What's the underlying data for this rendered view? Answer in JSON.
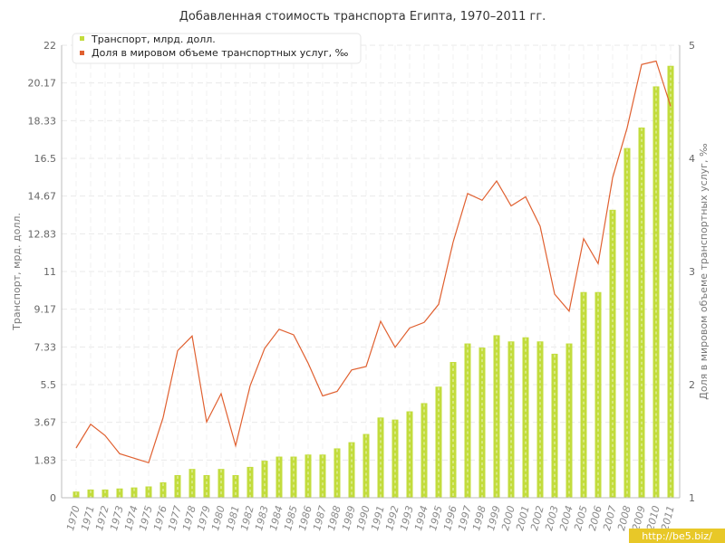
{
  "chart_data": {
    "type": "bar+line",
    "title": "Добавленная стоимость транспорта Египта, 1970–2011 гг.",
    "y_left_label": "Транспорт, мрд. долл.",
    "y_right_label": "Доля в мировом объеме транспортных услуг, ‰",
    "y_left_ticks": [
      "0",
      "1.83",
      "3.67",
      "5.5",
      "7.33",
      "9.17",
      "11",
      "12.83",
      "14.67",
      "16.5",
      "18.33",
      "20.17",
      "22"
    ],
    "y_right_ticks": [
      "1",
      "2",
      "3",
      "4",
      "5"
    ],
    "y_left_range": [
      0,
      22
    ],
    "y_right_range": [
      1,
      5
    ],
    "grid": true,
    "legend_position": "top-left",
    "categories": [
      "1970",
      "1971",
      "1972",
      "1973",
      "1974",
      "1975",
      "1976",
      "1977",
      "1978",
      "1979",
      "1980",
      "1981",
      "1982",
      "1983",
      "1984",
      "1985",
      "1986",
      "1987",
      "1988",
      "1989",
      "1990",
      "1991",
      "1992",
      "1993",
      "1994",
      "1995",
      "1996",
      "1997",
      "1998",
      "1999",
      "2000",
      "2001",
      "2002",
      "2003",
      "2004",
      "2005",
      "2006",
      "2007",
      "2008",
      "2009",
      "2010",
      "2011"
    ],
    "series": [
      {
        "name": "Транспорт, млрд. долл.",
        "type": "bar",
        "axis": "left",
        "color": "#c2dc3c",
        "values": [
          0.3,
          0.4,
          0.4,
          0.45,
          0.5,
          0.55,
          0.75,
          1.1,
          1.4,
          1.1,
          1.4,
          1.1,
          1.5,
          1.8,
          2.0,
          2.0,
          2.1,
          2.1,
          2.4,
          2.7,
          3.1,
          3.9,
          3.8,
          4.2,
          4.6,
          5.4,
          6.6,
          7.5,
          7.3,
          7.9,
          7.6,
          7.8,
          7.6,
          7.0,
          7.5,
          10.0,
          10.0,
          14.0,
          17.0,
          18.0,
          20.0,
          21.0
        ]
      },
      {
        "name": "Доля в мировом объеме транспортных услуг, ‰",
        "type": "line",
        "axis": "right",
        "color": "#e06030",
        "values": [
          1.44,
          1.65,
          1.55,
          1.39,
          1.35,
          1.31,
          1.71,
          2.3,
          2.43,
          1.67,
          1.92,
          1.46,
          1.99,
          2.32,
          2.49,
          2.44,
          2.19,
          1.9,
          1.94,
          2.13,
          2.16,
          2.56,
          2.33,
          2.5,
          2.55,
          2.71,
          3.26,
          3.69,
          3.63,
          3.8,
          3.58,
          3.66,
          3.4,
          2.8,
          2.65,
          3.29,
          3.07,
          3.83,
          4.27,
          4.83,
          4.86,
          4.46
        ]
      }
    ]
  },
  "watermark": "http://be5.biz/"
}
